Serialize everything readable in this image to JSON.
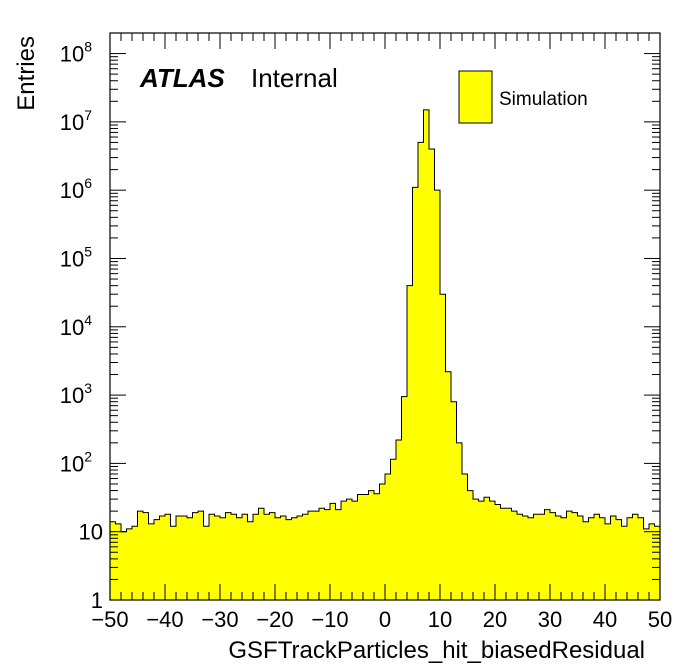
{
  "chart_data": {
    "type": "histogram",
    "title": "",
    "xlabel": "GSFTrackParticles_hit_biasedResidual",
    "ylabel": "Entries",
    "xlim": [
      -50,
      50
    ],
    "ylim": [
      1,
      200000000
    ],
    "yscale": "log",
    "bin_width": 1,
    "fill_color": "#ffff00",
    "line_color": "#000000",
    "x_ticks": [
      {
        "value": -50,
        "label": "−50"
      },
      {
        "value": -40,
        "label": "−40"
      },
      {
        "value": -30,
        "label": "−30"
      },
      {
        "value": -20,
        "label": "−20"
      },
      {
        "value": -10,
        "label": "−10"
      },
      {
        "value": 0,
        "label": "0"
      },
      {
        "value": 10,
        "label": "10"
      },
      {
        "value": 20,
        "label": "20"
      },
      {
        "value": 30,
        "label": "30"
      },
      {
        "value": 40,
        "label": "40"
      },
      {
        "value": 50,
        "label": "50"
      }
    ],
    "y_ticks": [
      {
        "value": 1,
        "base": "1",
        "exp": ""
      },
      {
        "value": 10,
        "base": "10",
        "exp": ""
      },
      {
        "value": 100,
        "base": "10",
        "exp": "2"
      },
      {
        "value": 1000,
        "base": "10",
        "exp": "3"
      },
      {
        "value": 10000,
        "base": "10",
        "exp": "4"
      },
      {
        "value": 100000,
        "base": "10",
        "exp": "5"
      },
      {
        "value": 1000000,
        "base": "10",
        "exp": "6"
      },
      {
        "value": 10000000,
        "base": "10",
        "exp": "7"
      },
      {
        "value": 100000000,
        "base": "10",
        "exp": "8"
      }
    ],
    "legend": {
      "position": "top-right",
      "entries": [
        {
          "label": "Simulation",
          "color": "#ffff00"
        }
      ]
    },
    "atlas_label": {
      "bold": "ATLAS",
      "text": "Internal"
    },
    "bin_edges_start": -50,
    "values": [
      14,
      13,
      10,
      11,
      12,
      20,
      19,
      13,
      15,
      17,
      18,
      12,
      17,
      17,
      16,
      19,
      20,
      12,
      18,
      17,
      16,
      19,
      18,
      16,
      18,
      14,
      18,
      22,
      18,
      19,
      16,
      17,
      15,
      16,
      17,
      18,
      20,
      20,
      22,
      21,
      26,
      21,
      28,
      30,
      28,
      35,
      35,
      40,
      36,
      50,
      70,
      115,
      220,
      950,
      40000,
      1100000,
      5000000,
      15000000,
      4000000,
      1000000,
      30000,
      2200,
      800,
      200,
      70,
      40,
      30,
      28,
      32,
      28,
      25,
      22,
      22,
      20,
      18,
      17,
      16,
      18,
      18,
      21,
      19,
      17,
      16,
      20,
      19,
      17,
      14,
      16,
      18,
      16,
      13,
      17,
      15,
      12,
      16,
      18,
      16,
      11,
      13,
      12
    ]
  }
}
